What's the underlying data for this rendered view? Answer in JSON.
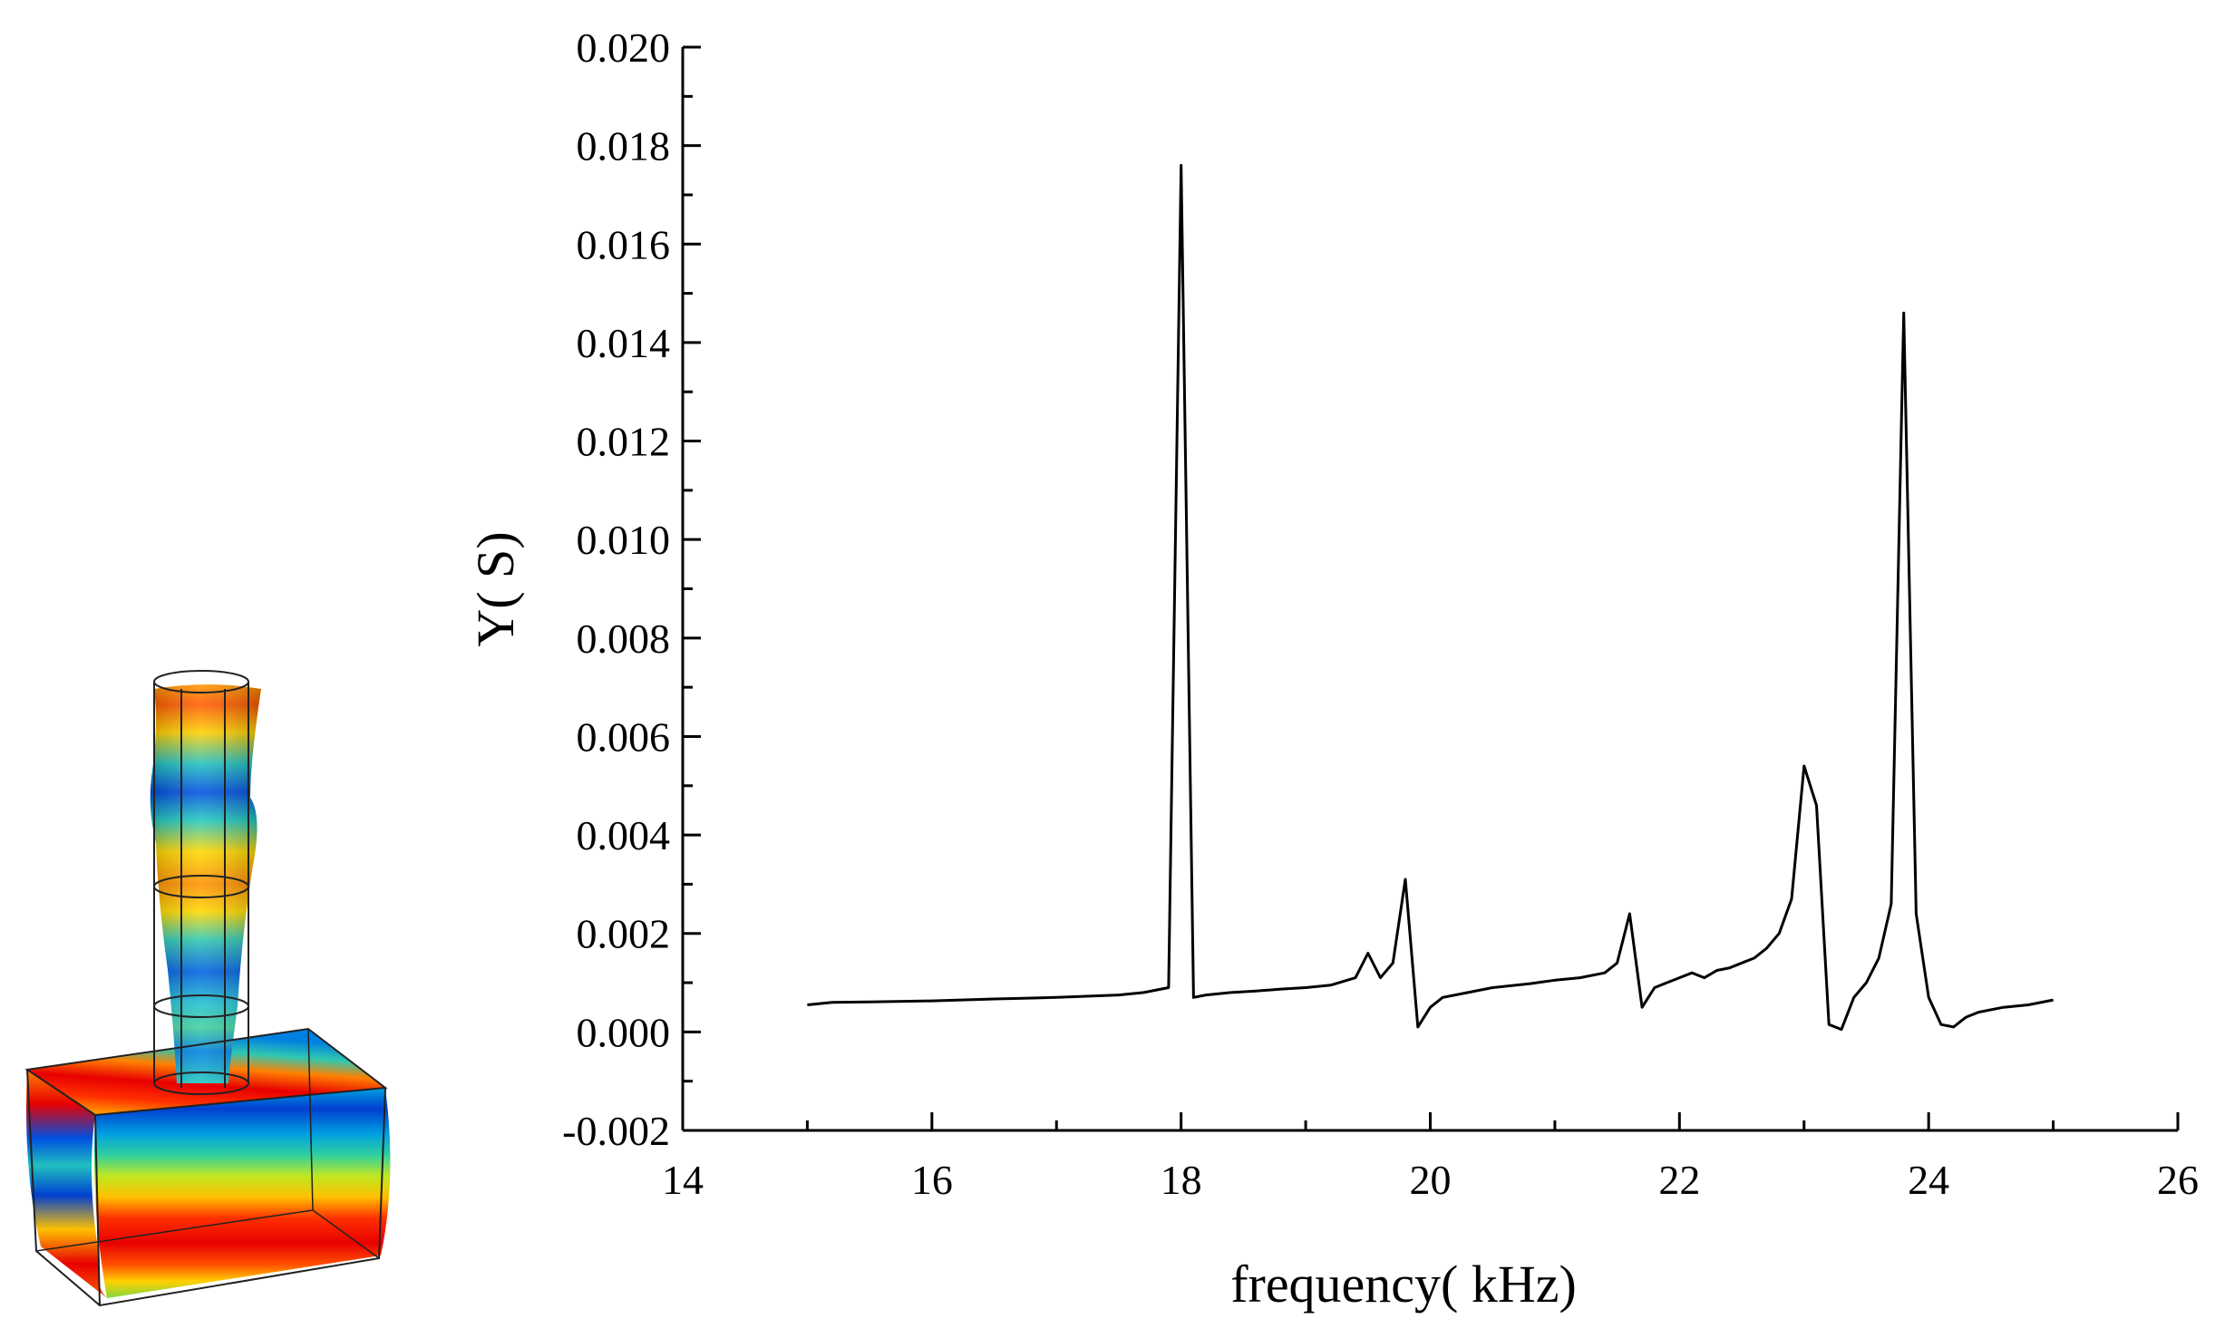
{
  "chart_data": {
    "type": "line",
    "title": "",
    "xlabel": "frequency(  kHz)",
    "ylabel": "Y(  S)",
    "xlim": [
      14,
      26
    ],
    "ylim": [
      -0.002,
      0.02
    ],
    "x_ticks": [
      14,
      16,
      18,
      20,
      22,
      24,
      26
    ],
    "x_tick_labels": [
      "14",
      "16",
      "18",
      "20",
      "22",
      "24",
      "26"
    ],
    "y_ticks": [
      -0.002,
      0.0,
      0.002,
      0.004,
      0.006,
      0.008,
      0.01,
      0.012,
      0.014,
      0.016,
      0.018,
      0.02
    ],
    "y_tick_labels": [
      "-0.002",
      "0.000",
      "0.002",
      "0.004",
      "0.006",
      "0.008",
      "0.010",
      "0.012",
      "0.014",
      "0.016",
      "0.018",
      "0.020"
    ],
    "grid": false,
    "line_color": "#000000",
    "series": [
      {
        "x": [
          15.0,
          15.2,
          15.5,
          16.0,
          16.5,
          17.0,
          17.5,
          17.7,
          17.9,
          18.0,
          18.1,
          18.2,
          18.4,
          18.6,
          18.8,
          19.0,
          19.2,
          19.4,
          19.5,
          19.6,
          19.7,
          19.8,
          19.9,
          20.0,
          20.1,
          20.2,
          20.5,
          20.8,
          21.0,
          21.2,
          21.4,
          21.5,
          21.6,
          21.7,
          21.8,
          21.9,
          22.0,
          22.1,
          22.2,
          22.3,
          22.4,
          22.5,
          22.6,
          22.7,
          22.8,
          22.9,
          23.0,
          23.1,
          23.2,
          23.3,
          23.4,
          23.5,
          23.6,
          23.7,
          23.8,
          23.9,
          24.0,
          24.1,
          24.2,
          24.3,
          24.4,
          24.6,
          24.8,
          25.0
        ],
        "y": [
          0.00055,
          0.0006,
          0.00061,
          0.00063,
          0.00067,
          0.0007,
          0.00075,
          0.0008,
          0.0009,
          0.0176,
          0.0007,
          0.00075,
          0.0008,
          0.00083,
          0.00087,
          0.0009,
          0.00095,
          0.0011,
          0.0016,
          0.0011,
          0.0014,
          0.0031,
          0.0001,
          0.0005,
          0.0007,
          0.00075,
          0.0009,
          0.00098,
          0.00105,
          0.0011,
          0.0012,
          0.0014,
          0.0024,
          0.0005,
          0.0009,
          0.001,
          0.0011,
          0.0012,
          0.0011,
          0.00125,
          0.0013,
          0.0014,
          0.0015,
          0.0017,
          0.002,
          0.0027,
          0.0054,
          0.0046,
          0.00015,
          5e-05,
          0.0007,
          0.001,
          0.0015,
          0.0026,
          0.0146,
          0.0024,
          0.0007,
          0.00015,
          0.0001,
          0.0003,
          0.0004,
          0.0005,
          0.00055,
          0.00065
        ]
      }
    ]
  },
  "inset": {
    "description_icon": "mode-shape-3d-icon",
    "colors": [
      "#e8000a",
      "#ff7a00",
      "#ffd800",
      "#c8e820",
      "#18c8a0",
      "#00a8e8",
      "#0040d8"
    ]
  }
}
